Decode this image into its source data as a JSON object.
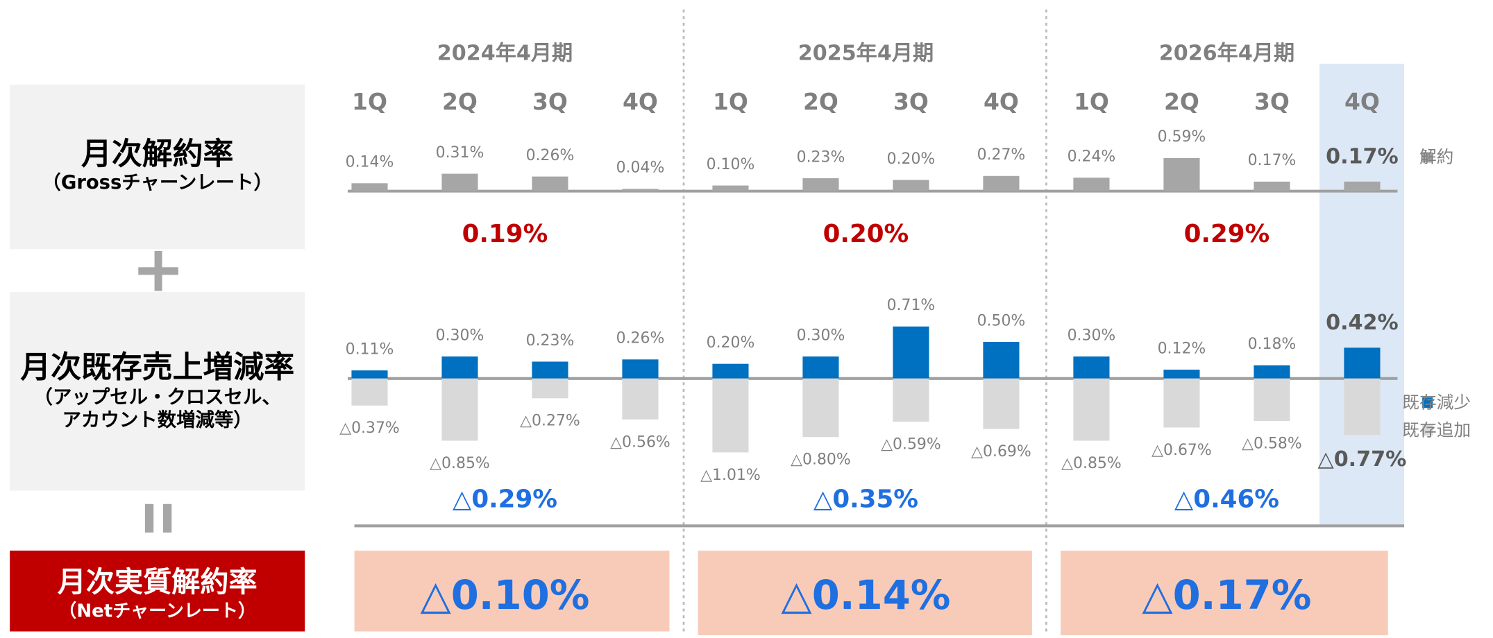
{
  "row_labels": [
    {
      "title": "月次解約率",
      "subtitle": [
        "（Grossチャーンレート）"
      ]
    },
    {
      "title": "月次既存売上増減率",
      "subtitle": [
        "（アップセル・クロスセル、",
        "アカウント数増減等）"
      ]
    },
    {
      "title": "月次実質解約率",
      "subtitle": [
        "（Netチャーンレート）"
      ]
    }
  ],
  "periods": [
    "2024年4月期",
    "2025年4月期",
    "2026年4月期"
  ],
  "chart_data": [
    {
      "type": "bar",
      "categories": [
        "1Q",
        "2Q",
        "3Q",
        "4Q",
        "1Q",
        "2Q",
        "3Q",
        "4Q",
        "1Q",
        "2Q",
        "3Q",
        "4Q"
      ],
      "series": [
        {
          "name": "解約",
          "color": "#a6a6a6",
          "values": [
            0.14,
            0.31,
            0.26,
            0.04,
            0.1,
            0.23,
            0.2,
            0.27,
            0.24,
            0.59,
            0.17,
            0.17
          ],
          "value_labels": [
            "0.14%",
            "0.31%",
            "0.26%",
            "0.04%",
            "0.10%",
            "0.23%",
            "0.20%",
            "0.27%",
            "0.24%",
            "0.59%",
            "0.17%",
            "0.17%"
          ]
        }
      ],
      "summaries": [
        "0.19%",
        "0.20%",
        "0.29%"
      ]
    },
    {
      "type": "bar",
      "series": [
        {
          "name": "既存減少",
          "color": "#0070c0",
          "values": [
            0.11,
            0.3,
            0.23,
            0.26,
            0.2,
            0.3,
            0.71,
            0.5,
            0.3,
            0.12,
            0.18,
            0.42
          ],
          "value_labels": [
            "0.11%",
            "0.30%",
            "0.23%",
            "0.26%",
            "0.20%",
            "0.30%",
            "0.71%",
            "0.50%",
            "0.30%",
            "0.12%",
            "0.18%",
            "0.42%"
          ]
        },
        {
          "name": "既存追加",
          "color": "#d9d9d9",
          "values": [
            -0.37,
            -0.85,
            -0.27,
            -0.56,
            -1.01,
            -0.8,
            -0.59,
            -0.69,
            -0.85,
            -0.67,
            -0.58,
            -0.77
          ],
          "value_labels": [
            "△0.37%",
            "△0.85%",
            "△0.27%",
            "△0.56%",
            "△1.01%",
            "△0.80%",
            "△0.59%",
            "△0.69%",
            "△0.85%",
            "△0.67%",
            "△0.58%",
            "△0.77%"
          ]
        }
      ],
      "summaries": [
        "△0.29%",
        "△0.35%",
        "△0.46%"
      ]
    }
  ],
  "net": [
    "△0.10%",
    "△0.14%",
    "△0.17%"
  ]
}
